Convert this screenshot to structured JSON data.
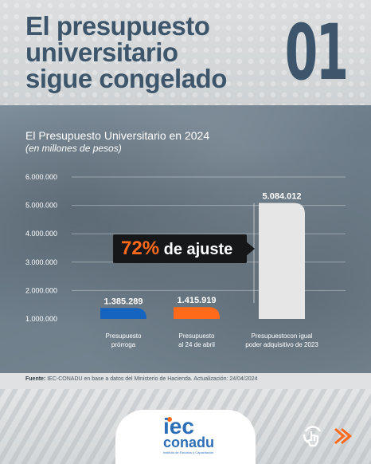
{
  "header": {
    "title_lines": [
      "El presupuesto",
      "universitario",
      "sigue congelado"
    ],
    "number": "01"
  },
  "chart_data": {
    "type": "bar",
    "title": "El Presupuesto Universitario en 2024",
    "subtitle": "(en millones de pesos)",
    "categories": [
      [
        "Presupuesto",
        "prórroga"
      ],
      [
        "Presupuesto",
        "al 24 de abril"
      ],
      [
        "Presupuestocon igual",
        "poder adquisitivo de 2023"
      ]
    ],
    "values": [
      1385.289,
      1415.919,
      5084.012
    ],
    "value_labels": [
      "1.385.289",
      "1.415.919",
      "5.084.012"
    ],
    "colors": [
      "#1565c0",
      "#ff6a1a",
      "#e6e6e6"
    ],
    "yticks": [
      1000,
      2000,
      3000,
      4000,
      5000,
      6000
    ],
    "ytick_labels": [
      "1.000.000",
      "2.000.000",
      "3.000.000",
      "4.000.000",
      "5.000.000",
      "6.000.000"
    ],
    "ylim": [
      1000,
      6000
    ],
    "grid": true,
    "annotation": {
      "percent": "72%",
      "text": "de ajuste"
    }
  },
  "source": {
    "label": "Fuente:",
    "text": "IEC-CONADU en base a datos del Ministerio de Hacienda. Actualización: 24/04/2024"
  },
  "logo": {
    "iec": "iec",
    "conadu": "conadu",
    "tagline": "Instituto de Estudios y Capacitación"
  },
  "colors": {
    "title": "#3d566b",
    "accent": "#ff6a1a",
    "brand_blue": "#2d6fb7"
  }
}
